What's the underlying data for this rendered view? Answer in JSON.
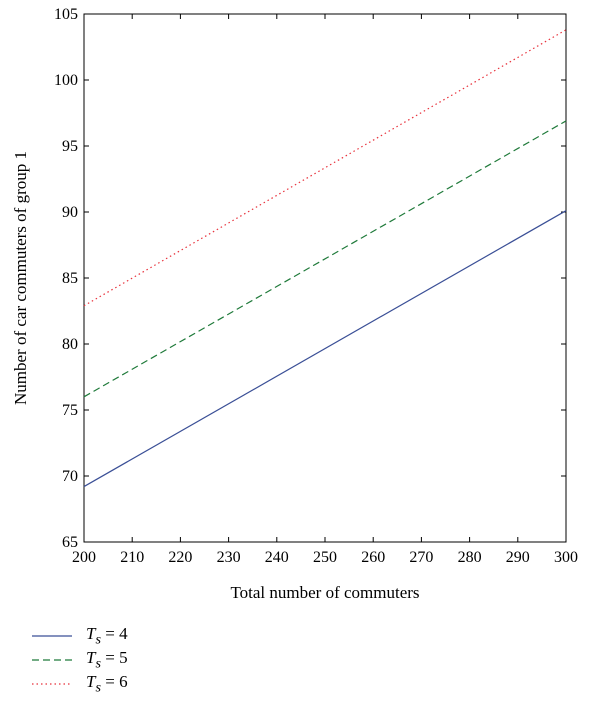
{
  "chart_data": {
    "type": "line",
    "xlabel": "Total number of commuters",
    "ylabel": "Number of car commuters of group 1",
    "xlim": [
      200,
      300
    ],
    "ylim": [
      65,
      105
    ],
    "xticks": [
      200,
      210,
      220,
      230,
      240,
      250,
      260,
      270,
      280,
      290,
      300
    ],
    "yticks": [
      65,
      70,
      75,
      80,
      85,
      90,
      95,
      100,
      105
    ],
    "grid": false,
    "legend_position": "bottom-left, below plot",
    "series": [
      {
        "name": "T_s = 4",
        "label_var": "T",
        "label_sub": "s",
        "label_rest": " = 4",
        "color": "#3a4f96",
        "style": "solid",
        "x": [
          200,
          300
        ],
        "y": [
          69.2,
          90.1
        ]
      },
      {
        "name": "T_s = 5",
        "label_var": "T",
        "label_sub": "s",
        "label_rest": " = 5",
        "color": "#1f7a3a",
        "style": "dashed",
        "x": [
          200,
          300
        ],
        "y": [
          76.0,
          96.9
        ]
      },
      {
        "name": "T_s = 6",
        "label_var": "T",
        "label_sub": "s",
        "label_rest": " = 6",
        "color": "#e8313b",
        "style": "dotted",
        "x": [
          200,
          300
        ],
        "y": [
          82.9,
          103.8
        ]
      }
    ]
  }
}
